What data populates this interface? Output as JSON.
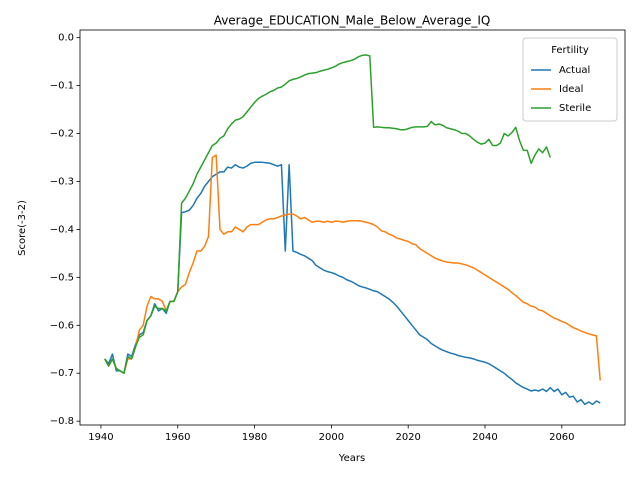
{
  "chart_data": {
    "type": "line",
    "title": "Average_EDUCATION_Male_Below_Average_IQ",
    "x_label": "Years",
    "y_label": "Score(-3-2)",
    "legend_title": "Fertility",
    "legend_position": "upper right",
    "x": [
      1941,
      1942,
      1943,
      1944,
      1945,
      1946,
      1947,
      1948,
      1949,
      1950,
      1951,
      1952,
      1953,
      1954,
      1955,
      1956,
      1957,
      1958,
      1959,
      1960,
      1961,
      1962,
      1963,
      1964,
      1965,
      1966,
      1967,
      1968,
      1969,
      1970,
      1971,
      1972,
      1973,
      1974,
      1975,
      1976,
      1977,
      1978,
      1979,
      1980,
      1981,
      1982,
      1983,
      1984,
      1985,
      1986,
      1987,
      1988,
      1989,
      1990,
      1991,
      1992,
      1993,
      1994,
      1995,
      1996,
      1997,
      1998,
      1999,
      2000,
      2001,
      2002,
      2003,
      2004,
      2005,
      2006,
      2007,
      2008,
      2009,
      2010,
      2011,
      2012,
      2013,
      2014,
      2015,
      2016,
      2017,
      2018,
      2019,
      2020,
      2021,
      2022,
      2023,
      2024,
      2025,
      2026,
      2027,
      2028,
      2029,
      2030,
      2031,
      2032,
      2033,
      2034,
      2035,
      2036,
      2037,
      2038,
      2039,
      2040,
      2041,
      2042,
      2043,
      2044,
      2045,
      2046,
      2047,
      2048,
      2049,
      2050,
      2051,
      2052,
      2053,
      2054,
      2055,
      2056,
      2057,
      2058,
      2059,
      2060,
      2061,
      2062,
      2063,
      2064,
      2065,
      2066,
      2067,
      2068,
      2069,
      2070
    ],
    "series": [
      {
        "name": "Actual",
        "color": "#1f77b4",
        "values": [
          -0.67,
          -0.68,
          -0.66,
          -0.695,
          -0.695,
          -0.7,
          -0.66,
          -0.665,
          -0.64,
          -0.62,
          -0.615,
          -0.59,
          -0.58,
          -0.555,
          -0.57,
          -0.565,
          -0.575,
          -0.55,
          -0.55,
          -0.53,
          -0.365,
          -0.363,
          -0.36,
          -0.35,
          -0.335,
          -0.325,
          -0.31,
          -0.3,
          -0.29,
          -0.285,
          -0.28,
          -0.28,
          -0.27,
          -0.272,
          -0.265,
          -0.27,
          -0.272,
          -0.268,
          -0.262,
          -0.26,
          -0.26,
          -0.26,
          -0.261,
          -0.262,
          -0.265,
          -0.268,
          -0.265,
          -0.445,
          -0.265,
          -0.445,
          -0.448,
          -0.452,
          -0.455,
          -0.46,
          -0.465,
          -0.475,
          -0.48,
          -0.485,
          -0.488,
          -0.49,
          -0.493,
          -0.497,
          -0.5,
          -0.505,
          -0.508,
          -0.512,
          -0.517,
          -0.52,
          -0.522,
          -0.525,
          -0.528,
          -0.53,
          -0.535,
          -0.54,
          -0.545,
          -0.552,
          -0.56,
          -0.57,
          -0.58,
          -0.59,
          -0.6,
          -0.61,
          -0.62,
          -0.625,
          -0.63,
          -0.638,
          -0.643,
          -0.648,
          -0.652,
          -0.655,
          -0.658,
          -0.66,
          -0.663,
          -0.665,
          -0.667,
          -0.668,
          -0.67,
          -0.673,
          -0.675,
          -0.677,
          -0.68,
          -0.685,
          -0.69,
          -0.695,
          -0.7,
          -0.707,
          -0.713,
          -0.72,
          -0.725,
          -0.73,
          -0.733,
          -0.737,
          -0.735,
          -0.737,
          -0.733,
          -0.738,
          -0.73,
          -0.738,
          -0.733,
          -0.745,
          -0.74,
          -0.75,
          -0.748,
          -0.76,
          -0.755,
          -0.765,
          -0.76,
          -0.765,
          -0.758,
          -0.762
        ]
      },
      {
        "name": "Ideal",
        "color": "#ff7f0e",
        "values": [
          -0.67,
          -0.685,
          -0.67,
          -0.69,
          -0.695,
          -0.7,
          -0.67,
          -0.67,
          -0.645,
          -0.61,
          -0.6,
          -0.56,
          -0.54,
          -0.545,
          -0.545,
          -0.55,
          -0.57,
          -0.55,
          -0.55,
          -0.53,
          -0.52,
          -0.515,
          -0.49,
          -0.47,
          -0.445,
          -0.445,
          -0.435,
          -0.415,
          -0.25,
          -0.245,
          -0.4,
          -0.41,
          -0.405,
          -0.405,
          -0.395,
          -0.4,
          -0.405,
          -0.395,
          -0.39,
          -0.39,
          -0.39,
          -0.385,
          -0.38,
          -0.378,
          -0.378,
          -0.375,
          -0.372,
          -0.37,
          -0.368,
          -0.368,
          -0.372,
          -0.378,
          -0.375,
          -0.38,
          -0.385,
          -0.383,
          -0.383,
          -0.385,
          -0.383,
          -0.385,
          -0.383,
          -0.383,
          -0.385,
          -0.383,
          -0.382,
          -0.382,
          -0.382,
          -0.383,
          -0.385,
          -0.387,
          -0.39,
          -0.395,
          -0.403,
          -0.405,
          -0.41,
          -0.413,
          -0.418,
          -0.42,
          -0.423,
          -0.425,
          -0.43,
          -0.432,
          -0.44,
          -0.445,
          -0.45,
          -0.455,
          -0.46,
          -0.463,
          -0.466,
          -0.468,
          -0.469,
          -0.47,
          -0.47,
          -0.472,
          -0.474,
          -0.477,
          -0.48,
          -0.485,
          -0.49,
          -0.495,
          -0.5,
          -0.505,
          -0.51,
          -0.515,
          -0.52,
          -0.525,
          -0.532,
          -0.538,
          -0.545,
          -0.552,
          -0.555,
          -0.56,
          -0.562,
          -0.568,
          -0.57,
          -0.575,
          -0.58,
          -0.585,
          -0.588,
          -0.592,
          -0.595,
          -0.6,
          -0.605,
          -0.608,
          -0.612,
          -0.615,
          -0.618,
          -0.62,
          -0.622,
          -0.715
        ]
      },
      {
        "name": "Sterile",
        "color": "#2ca02c",
        "values": [
          -0.67,
          -0.685,
          -0.67,
          -0.69,
          -0.695,
          -0.7,
          -0.665,
          -0.67,
          -0.645,
          -0.625,
          -0.62,
          -0.59,
          -0.58,
          -0.56,
          -0.565,
          -0.565,
          -0.57,
          -0.55,
          -0.55,
          -0.53,
          -0.345,
          -0.335,
          -0.32,
          -0.305,
          -0.285,
          -0.27,
          -0.255,
          -0.24,
          -0.225,
          -0.22,
          -0.21,
          -0.205,
          -0.19,
          -0.18,
          -0.172,
          -0.17,
          -0.165,
          -0.155,
          -0.145,
          -0.135,
          -0.127,
          -0.122,
          -0.118,
          -0.113,
          -0.11,
          -0.105,
          -0.103,
          -0.097,
          -0.09,
          -0.087,
          -0.085,
          -0.082,
          -0.078,
          -0.075,
          -0.074,
          -0.073,
          -0.07,
          -0.068,
          -0.066,
          -0.063,
          -0.06,
          -0.055,
          -0.052,
          -0.05,
          -0.048,
          -0.045,
          -0.04,
          -0.037,
          -0.036,
          -0.038,
          -0.187,
          -0.186,
          -0.187,
          -0.188,
          -0.188,
          -0.189,
          -0.19,
          -0.192,
          -0.192,
          -0.19,
          -0.187,
          -0.186,
          -0.186,
          -0.186,
          -0.185,
          -0.175,
          -0.182,
          -0.18,
          -0.183,
          -0.188,
          -0.19,
          -0.192,
          -0.195,
          -0.2,
          -0.2,
          -0.205,
          -0.212,
          -0.218,
          -0.222,
          -0.22,
          -0.212,
          -0.225,
          -0.225,
          -0.22,
          -0.2,
          -0.205,
          -0.198,
          -0.187,
          -0.215,
          -0.235,
          -0.235,
          -0.262,
          -0.245,
          -0.232,
          -0.24,
          -0.228,
          -0.25,
          null,
          null,
          null,
          null,
          null,
          null,
          null,
          null,
          null,
          null,
          null,
          null,
          null
        ]
      }
    ],
    "xlim": [
      1934.55,
      2076.45
    ],
    "xticks": [
      1940,
      1960,
      1980,
      2000,
      2020,
      2040,
      2060
    ],
    "ylim": [
      -0.808,
      0.016
    ],
    "yticks": [
      {
        "value": 0,
        "label": "0.0"
      },
      {
        "value": -0.1,
        "label": "−0.1"
      },
      {
        "value": -0.2,
        "label": "−0.2"
      },
      {
        "value": -0.3,
        "label": "−0.3"
      },
      {
        "value": -0.4,
        "label": "−0.4"
      },
      {
        "value": -0.5,
        "label": "−0.5"
      },
      {
        "value": -0.6,
        "label": "−0.6"
      },
      {
        "value": -0.7,
        "label": "−0.7"
      },
      {
        "value": -0.8,
        "label": "−0.8"
      }
    ],
    "grid": false
  }
}
